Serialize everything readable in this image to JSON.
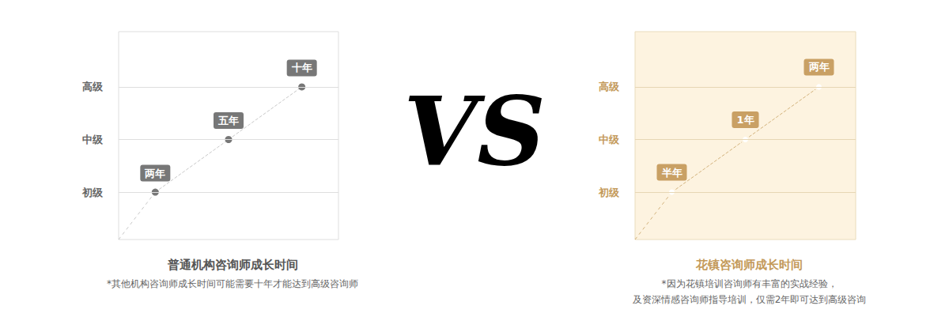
{
  "divider": "VS",
  "chart_data": [
    {
      "type": "line",
      "title": "普通机构咨询师成长时间",
      "subtitle": "*其他机构咨询师成长时间可能需要十年才能达到高级咨询师",
      "categories": [
        "两年",
        "五年",
        "十年"
      ],
      "values": [
        1,
        2,
        3
      ],
      "color": "#777777",
      "marker": "circle",
      "line_style": "dashed",
      "ylim": [
        0.1,
        4.05
      ],
      "yticks": [
        {
          "value": 1,
          "label": "初级"
        },
        {
          "value": 2,
          "label": "中级"
        },
        {
          "value": 3,
          "label": "高级"
        }
      ],
      "grid": true,
      "tick_labels": "y"
    },
    {
      "type": "line",
      "title": "花镇咨询师成长时间",
      "subtitle": "*因为花镇培训咨询师有丰富的实战经验，\n及资深情感咨询师指导培训，仅需2年即可达到高级咨询",
      "categories": [
        "半年",
        "1年",
        "两年"
      ],
      "values": [
        1,
        2,
        3
      ],
      "color": "#c9a064",
      "marker": "ring",
      "line_style": "dashed",
      "ylim": [
        0.1,
        4.05
      ],
      "yticks": [
        {
          "value": 1,
          "label": "初级"
        },
        {
          "value": 2,
          "label": "中级"
        },
        {
          "value": 3,
          "label": "高级"
        }
      ],
      "grid": true,
      "tick_labels": "y"
    }
  ]
}
